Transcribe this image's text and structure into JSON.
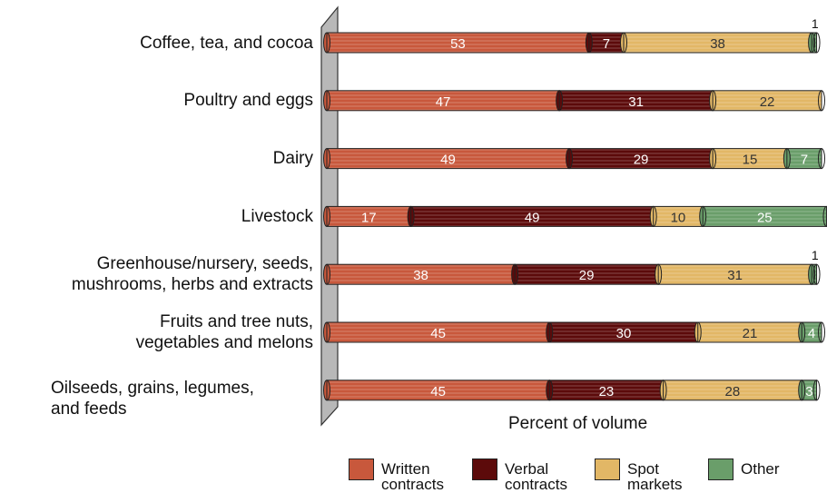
{
  "chart_data": {
    "type": "bar",
    "orientation": "horizontal",
    "stacked": true,
    "xlabel": "Percent of volume",
    "xlim": [
      0,
      100
    ],
    "categories": [
      "Coffee, tea, and cocoa",
      "Poultry and eggs",
      "Dairy",
      "Livestock",
      "Greenhouse/nursery, seeds, mushrooms, herbs and extracts",
      "Fruits and tree nuts, vegetables and melons",
      "Oilseeds, grains, legumes, and feeds"
    ],
    "category_lines": [
      [
        "Coffee, tea, and cocoa"
      ],
      [
        "Poultry and eggs"
      ],
      [
        "Dairy"
      ],
      [
        "Livestock"
      ],
      [
        "Greenhouse/nursery, seeds,",
        "mushrooms, herbs and extracts"
      ],
      [
        "Fruits and tree nuts,",
        "vegetables and melons"
      ],
      [
        "Oilseeds, grains, legumes,",
        "and feeds"
      ]
    ],
    "series": [
      {
        "name": "Written contracts",
        "color": "#c8583c",
        "values": [
          53,
          47,
          49,
          17,
          38,
          45,
          45
        ]
      },
      {
        "name": "Verbal contracts",
        "color": "#5c0a0a",
        "values": [
          7,
          31,
          29,
          49,
          29,
          30,
          23
        ]
      },
      {
        "name": "Spot markets",
        "color": "#e2b766",
        "values": [
          38,
          22,
          15,
          10,
          31,
          21,
          28
        ]
      },
      {
        "name": "Other",
        "color": "#6a9e6a",
        "values": [
          1,
          0,
          7,
          25,
          1,
          4,
          3
        ]
      }
    ],
    "legend": {
      "position": "bottom",
      "items": [
        {
          "lines": [
            "Written",
            "contracts"
          ],
          "color": "#c8583c"
        },
        {
          "lines": [
            "Verbal",
            "contracts"
          ],
          "color": "#5c0a0a"
        },
        {
          "lines": [
            "Spot",
            "markets"
          ],
          "color": "#e2b766"
        },
        {
          "lines": [
            "Other"
          ],
          "color": "#6a9e6a"
        }
      ]
    }
  }
}
